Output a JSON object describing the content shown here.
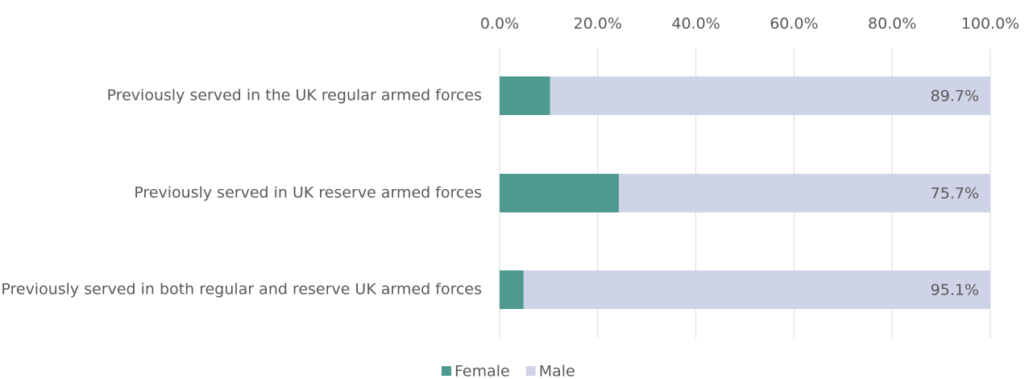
{
  "chart_data": {
    "type": "stacked_barh",
    "categories": [
      "Previously served in the UK regular armed forces",
      "Previously served in UK reserve armed forces",
      "Previously served in both regular and reserve UK armed forces"
    ],
    "series": [
      {
        "name": "Female",
        "color": "#4e9a91",
        "values": [
          10.3,
          24.3,
          4.9
        ],
        "value_labels": [
          "10.3%",
          "24.3%",
          "4.9%"
        ]
      },
      {
        "name": "Male",
        "color": "#cfd3e7",
        "values": [
          89.7,
          75.7,
          95.1
        ],
        "value_labels": [
          "89.7%",
          "75.7%",
          "95.1%"
        ]
      }
    ],
    "xlim": [
      0,
      100
    ],
    "xticks": [
      {
        "value": 0,
        "label": "0.0%"
      },
      {
        "value": 20,
        "label": "20.0%"
      },
      {
        "value": 40,
        "label": "40.0%"
      },
      {
        "value": 60,
        "label": "60.0%"
      },
      {
        "value": 80,
        "label": "80.0%"
      },
      {
        "value": 100,
        "label": "100.0%"
      }
    ],
    "grid": true,
    "legend": "bottom"
  }
}
